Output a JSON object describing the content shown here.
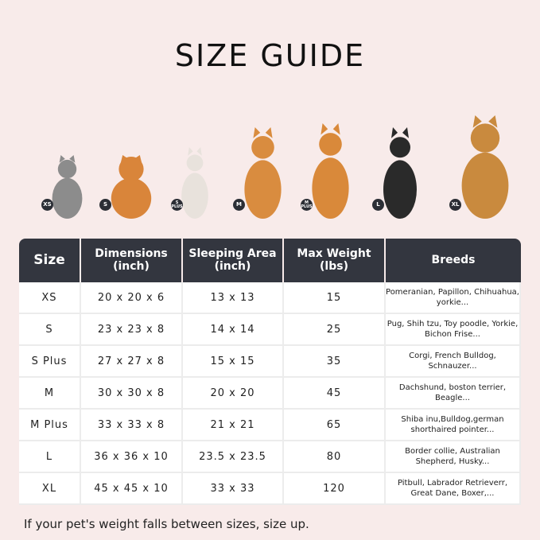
{
  "title": "SIZE GUIDE",
  "pets": [
    {
      "badge": "XS",
      "color": "#8c8c8c"
    },
    {
      "badge": "S",
      "color": "#d9853a"
    },
    {
      "badge": "S PLUS",
      "color": "#e8e2dc"
    },
    {
      "badge": "M",
      "color": "#d98c3f"
    },
    {
      "badge": "M PLUS",
      "color": "#d9893a"
    },
    {
      "badge": "L",
      "color": "#2a2a2a"
    },
    {
      "badge": "XL",
      "color": "#c98a3e"
    }
  ],
  "table": {
    "headers": [
      "Size",
      "Dimensions (inch)",
      "Sleeping Area (inch)",
      "Max Weight (lbs)",
      "Breeds"
    ],
    "rows": [
      [
        "XS",
        "20 x 20 x 6",
        "13 x 13",
        "15",
        "Pomeranian, Papillon, Chihuahua, yorkie..."
      ],
      [
        "S",
        "23 x 23 x 8",
        "14 x 14",
        "25",
        "Pug, Shih tzu, Toy poodle, Yorkie, Bichon Frise..."
      ],
      [
        "S Plus",
        "27 x 27 x 8",
        "15 x 15",
        "35",
        "Corgi, French Bulldog, Schnauzer..."
      ],
      [
        "M",
        "30 x 30 x 8",
        "20 x 20",
        "45",
        "Dachshund, boston terrier, Beagle..."
      ],
      [
        "M Plus",
        "33 x 33 x 8",
        "21 x 21",
        "65",
        "Shiba inu,Bulldog,german shorthaired pointer..."
      ],
      [
        "L",
        "36 x 36 x 10",
        "23.5 x 23.5",
        "80",
        "Border collie, Australian Shepherd, Husky..."
      ],
      [
        "XL",
        "45 x 45 x 10",
        "33 x 33",
        "120",
        "Pitbull, Labrador Retrieverr, Great Dane, Boxer,..."
      ]
    ]
  },
  "note": "If your pet's weight falls between sizes, size up."
}
